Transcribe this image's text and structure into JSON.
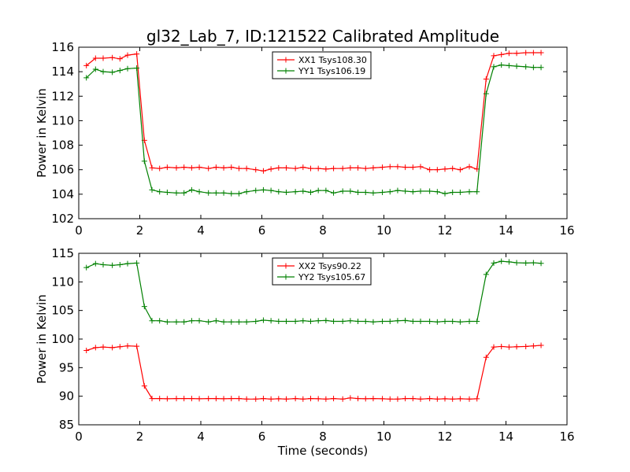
{
  "figure_title": "gl32_Lab_7, ID:121522 Calibrated Amplitude",
  "chart_data": [
    {
      "type": "line",
      "xlabel": "",
      "ylabel": "Power in Kelvin",
      "xlim": [
        0,
        16
      ],
      "ylim": [
        102,
        116
      ],
      "xticks": [
        0,
        2,
        4,
        6,
        8,
        10,
        12,
        14,
        16
      ],
      "yticks": [
        102,
        104,
        106,
        108,
        110,
        112,
        114,
        116
      ],
      "grid": false,
      "legend_position": "upper center",
      "x": [
        0.25,
        0.55,
        0.8,
        1.1,
        1.35,
        1.6,
        1.9,
        2.15,
        2.4,
        2.65,
        2.9,
        3.2,
        3.45,
        3.7,
        3.95,
        4.25,
        4.5,
        4.75,
        5.0,
        5.25,
        5.5,
        5.8,
        6.05,
        6.3,
        6.55,
        6.8,
        7.1,
        7.35,
        7.6,
        7.85,
        8.1,
        8.35,
        8.65,
        8.9,
        9.15,
        9.4,
        9.65,
        9.95,
        10.2,
        10.45,
        10.7,
        10.95,
        11.2,
        11.5,
        11.75,
        12.0,
        12.25,
        12.5,
        12.8,
        13.05,
        13.35,
        13.6,
        13.85,
        14.1,
        14.35,
        14.65,
        14.9,
        15.15
      ],
      "series": [
        {
          "name": "XX1 Tsys108.30",
          "color": "#ff0000",
          "values": [
            114.5,
            115.1,
            115.1,
            115.15,
            115.05,
            115.35,
            115.45,
            108.4,
            106.15,
            106.1,
            106.2,
            106.15,
            106.2,
            106.15,
            106.2,
            106.1,
            106.2,
            106.15,
            106.2,
            106.1,
            106.1,
            106.0,
            105.9,
            106.05,
            106.15,
            106.15,
            106.1,
            106.2,
            106.1,
            106.1,
            106.05,
            106.1,
            106.1,
            106.15,
            106.15,
            106.1,
            106.15,
            106.2,
            106.25,
            106.25,
            106.2,
            106.2,
            106.25,
            106.0,
            106.0,
            106.05,
            106.1,
            106.0,
            106.25,
            106.05,
            113.4,
            115.3,
            115.4,
            115.5,
            115.5,
            115.55,
            115.55,
            115.55
          ]
        },
        {
          "name": "YY1 Tsys106.19",
          "color": "#008000",
          "values": [
            113.5,
            114.2,
            114.0,
            113.95,
            114.1,
            114.25,
            114.3,
            106.7,
            104.35,
            104.2,
            104.15,
            104.1,
            104.1,
            104.35,
            104.2,
            104.1,
            104.1,
            104.1,
            104.05,
            104.05,
            104.2,
            104.3,
            104.35,
            104.3,
            104.2,
            104.15,
            104.2,
            104.25,
            104.15,
            104.3,
            104.3,
            104.1,
            104.25,
            104.25,
            104.15,
            104.15,
            104.1,
            104.15,
            104.2,
            104.3,
            104.25,
            104.2,
            104.25,
            104.25,
            104.2,
            104.05,
            104.15,
            104.15,
            104.2,
            104.2,
            112.2,
            114.4,
            114.55,
            114.5,
            114.45,
            114.4,
            114.35,
            114.35
          ]
        }
      ]
    },
    {
      "type": "line",
      "xlabel": "Time (seconds)",
      "ylabel": "Power in Kelvin",
      "xlim": [
        0,
        16
      ],
      "ylim": [
        85,
        115
      ],
      "xticks": [
        0,
        2,
        4,
        6,
        8,
        10,
        12,
        14,
        16
      ],
      "yticks": [
        85,
        90,
        95,
        100,
        105,
        110,
        115
      ],
      "grid": false,
      "legend_position": "upper center",
      "x": [
        0.25,
        0.55,
        0.8,
        1.1,
        1.35,
        1.6,
        1.9,
        2.15,
        2.4,
        2.65,
        2.9,
        3.2,
        3.45,
        3.7,
        3.95,
        4.25,
        4.5,
        4.75,
        5.0,
        5.25,
        5.5,
        5.8,
        6.05,
        6.3,
        6.55,
        6.8,
        7.1,
        7.35,
        7.6,
        7.85,
        8.1,
        8.35,
        8.65,
        8.9,
        9.15,
        9.4,
        9.65,
        9.95,
        10.2,
        10.45,
        10.7,
        10.95,
        11.2,
        11.5,
        11.75,
        12.0,
        12.25,
        12.5,
        12.8,
        13.05,
        13.35,
        13.6,
        13.85,
        14.1,
        14.35,
        14.65,
        14.9,
        15.15
      ],
      "series": [
        {
          "name": "XX2 Tsys90.22",
          "color": "#ff0000",
          "values": [
            98.0,
            98.5,
            98.6,
            98.5,
            98.65,
            98.8,
            98.75,
            91.8,
            89.6,
            89.6,
            89.55,
            89.6,
            89.6,
            89.6,
            89.55,
            89.6,
            89.6,
            89.55,
            89.6,
            89.6,
            89.5,
            89.5,
            89.6,
            89.5,
            89.55,
            89.5,
            89.6,
            89.5,
            89.6,
            89.55,
            89.5,
            89.6,
            89.5,
            89.7,
            89.6,
            89.55,
            89.6,
            89.55,
            89.5,
            89.5,
            89.6,
            89.6,
            89.5,
            89.6,
            89.5,
            89.55,
            89.5,
            89.55,
            89.5,
            89.55,
            96.8,
            98.6,
            98.7,
            98.6,
            98.65,
            98.7,
            98.8,
            98.9
          ]
        },
        {
          "name": "YY2 Tsys105.67",
          "color": "#008000",
          "values": [
            112.5,
            113.2,
            113.0,
            112.9,
            113.0,
            113.2,
            113.3,
            105.7,
            103.2,
            103.2,
            103.0,
            103.0,
            103.0,
            103.2,
            103.2,
            103.0,
            103.2,
            103.0,
            103.0,
            103.0,
            103.0,
            103.1,
            103.3,
            103.2,
            103.1,
            103.1,
            103.1,
            103.2,
            103.1,
            103.2,
            103.25,
            103.1,
            103.1,
            103.2,
            103.1,
            103.1,
            103.0,
            103.1,
            103.1,
            103.2,
            103.25,
            103.1,
            103.1,
            103.1,
            103.0,
            103.1,
            103.1,
            103.0,
            103.1,
            103.1,
            111.3,
            113.3,
            113.6,
            113.5,
            113.35,
            113.3,
            113.35,
            113.25
          ]
        }
      ]
    }
  ]
}
